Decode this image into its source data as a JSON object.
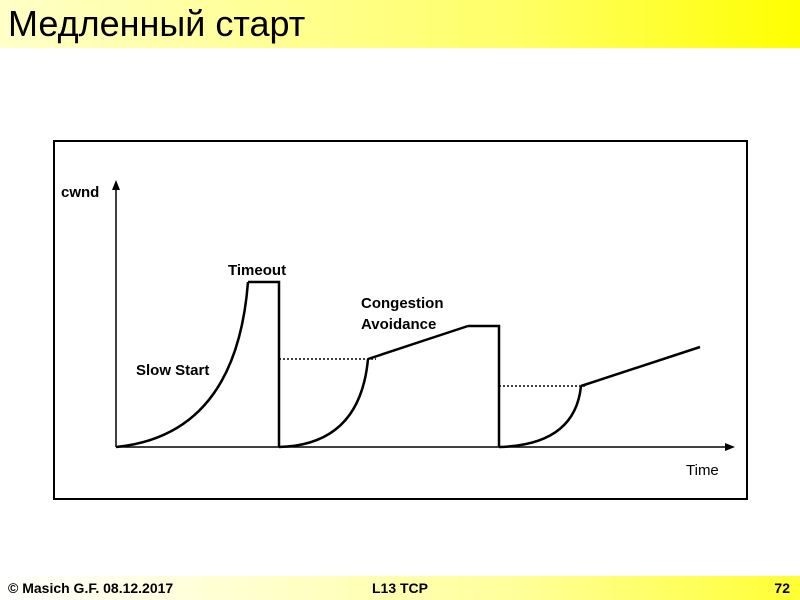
{
  "slide": {
    "title": "Медленный старт"
  },
  "diagram": {
    "y_axis_label": "cwnd",
    "x_axis_label": "Time",
    "label_timeout": "Timeout",
    "label_congestion_line1": "Congestion",
    "label_congestion_line2": "Avoidance",
    "label_slow_start": "Slow Start"
  },
  "footer": {
    "left": "© Masich G.F. 08.12.2017",
    "center": "L13 TCP",
    "page_number": "72"
  }
}
